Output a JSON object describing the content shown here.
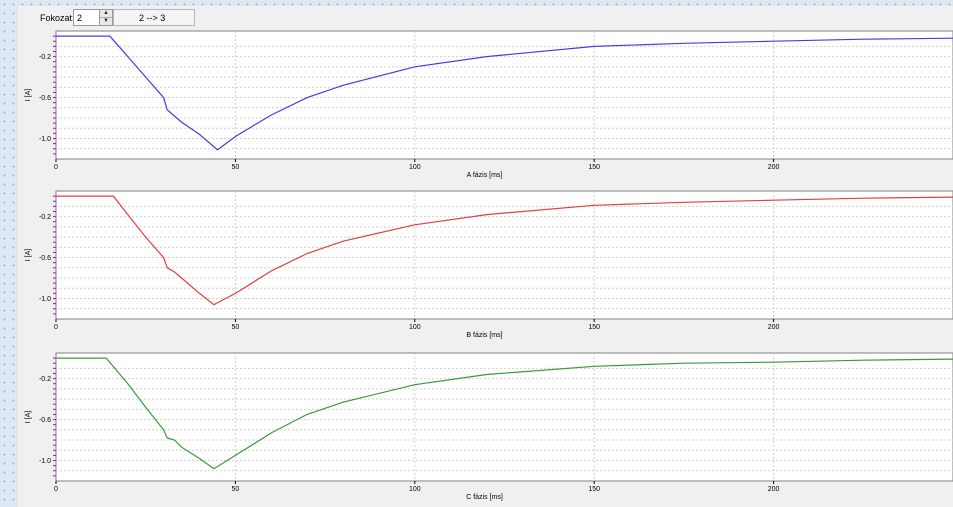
{
  "toolbar": {
    "label": "Fokozat:",
    "stepper_value": "2",
    "transition_text": "2 --> 3"
  },
  "chart_data": [
    {
      "type": "line",
      "xlabel": "A fázis [ms]",
      "ylabel": "I [A]",
      "xlim": [
        0,
        250
      ],
      "ylim": [
        -1.2,
        0.05
      ],
      "xticks": [
        "0",
        "50",
        "100",
        "150",
        "200"
      ],
      "yticks": [
        "-0.2",
        "-0.6",
        "-1.0"
      ],
      "color": "#4040e0",
      "series": [
        {
          "x": [
            0,
            15,
            20,
            25,
            30,
            31,
            33,
            35,
            40,
            45,
            50,
            60,
            70,
            80,
            100,
            120,
            150,
            175,
            200,
            225,
            250
          ],
          "y": [
            0,
            0,
            -0.2,
            -0.4,
            -0.6,
            -0.72,
            -0.78,
            -0.84,
            -0.96,
            -1.11,
            -0.98,
            -0.77,
            -0.6,
            -0.48,
            -0.3,
            -0.2,
            -0.1,
            -0.07,
            -0.05,
            -0.03,
            -0.02
          ]
        }
      ]
    },
    {
      "type": "line",
      "xlabel": "B fázis [ms]",
      "ylabel": "I [A]",
      "xlim": [
        0,
        250
      ],
      "ylim": [
        -1.2,
        0.05
      ],
      "xticks": [
        "0",
        "50",
        "100",
        "150",
        "200"
      ],
      "yticks": [
        "-0.2",
        "-0.6",
        "-1.0"
      ],
      "color": "#e04040",
      "series": [
        {
          "x": [
            0,
            16,
            20,
            25,
            30,
            31,
            33,
            35,
            40,
            44,
            50,
            60,
            70,
            80,
            100,
            120,
            150,
            175,
            200,
            225,
            250
          ],
          "y": [
            0,
            0,
            -0.18,
            -0.4,
            -0.6,
            -0.7,
            -0.74,
            -0.8,
            -0.95,
            -1.06,
            -0.95,
            -0.73,
            -0.56,
            -0.44,
            -0.28,
            -0.18,
            -0.09,
            -0.06,
            -0.04,
            -0.02,
            -0.01
          ]
        }
      ]
    },
    {
      "type": "line",
      "xlabel": "C fázis [ms]",
      "ylabel": "I [A]",
      "xlim": [
        0,
        250
      ],
      "ylim": [
        -1.2,
        0.05
      ],
      "xticks": [
        "0",
        "50",
        "100",
        "150",
        "200"
      ],
      "yticks": [
        "-0.2",
        "-0.6",
        "-1.0"
      ],
      "color": "#3a9a3a",
      "series": [
        {
          "x": [
            0,
            14,
            20,
            25,
            30,
            31,
            33,
            35,
            40,
            44,
            50,
            60,
            70,
            80,
            100,
            120,
            150,
            175,
            200,
            225,
            250
          ],
          "y": [
            0,
            0,
            -0.25,
            -0.48,
            -0.7,
            -0.78,
            -0.8,
            -0.87,
            -0.98,
            -1.08,
            -0.95,
            -0.73,
            -0.55,
            -0.43,
            -0.26,
            -0.16,
            -0.08,
            -0.05,
            -0.04,
            -0.02,
            -0.01
          ]
        }
      ]
    }
  ]
}
